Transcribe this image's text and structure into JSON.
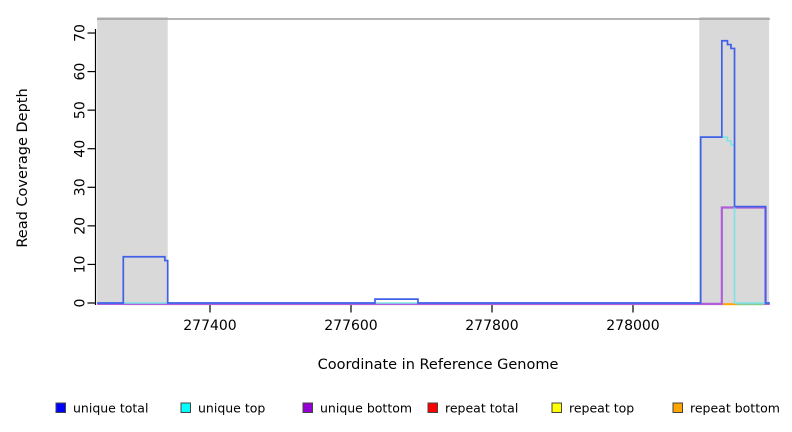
{
  "chart_data": {
    "type": "line",
    "subtype": "step-coverage",
    "title": "",
    "xlabel": "Coordinate in Reference Genome",
    "ylabel": "Read Coverage Depth",
    "x_ticks": [
      277400,
      277600,
      277800,
      278000
    ],
    "y_ticks": [
      0,
      10,
      20,
      30,
      40,
      50,
      60,
      70
    ],
    "xlim": [
      277240,
      278194
    ],
    "ylim": [
      0,
      73
    ],
    "grid": false,
    "legend_position": "bottom",
    "shaded_regions": [
      {
        "from": 277240,
        "to": 277340,
        "color": "#D9D9D9"
      },
      {
        "from": 278094,
        "to": 278193,
        "color": "#D9D9D9"
      }
    ],
    "series": [
      {
        "name": "repeat total",
        "line_color": "#F0808E",
        "segments": [
          [
            277277,
            277386,
            0
          ],
          [
            277634,
            277695,
            0
          ],
          [
            278096,
            278126,
            0
          ]
        ]
      },
      {
        "name": "repeat top",
        "line_color": "#8CC98F",
        "segments": [
          [
            278147,
            278188,
            0
          ]
        ]
      },
      {
        "name": "repeat bottom",
        "line_color": "#FFA500",
        "segments": [
          [
            278126,
            278147,
            0
          ]
        ]
      },
      {
        "name": "unique bottom",
        "line_color": "#AE5FD9",
        "segments": [
          [
            277240,
            278126,
            0
          ],
          [
            278126,
            278188,
            25
          ],
          [
            278188,
            278194,
            0
          ]
        ]
      },
      {
        "name": "unique top",
        "line_color": "#7CE3E8",
        "segments": [
          [
            277240,
            278096,
            0
          ],
          [
            278096,
            278134,
            43
          ],
          [
            278134,
            278139,
            42
          ],
          [
            278139,
            278144,
            41
          ],
          [
            278144,
            278194,
            0
          ]
        ]
      },
      {
        "name": "unique total",
        "line_color": "#4060E8",
        "segments": [
          [
            277240,
            277277,
            0
          ],
          [
            277277,
            277336,
            12
          ],
          [
            277336,
            277340,
            11
          ],
          [
            277340,
            277634,
            0
          ],
          [
            277634,
            277695,
            1
          ],
          [
            277695,
            278096,
            0
          ],
          [
            278096,
            278126,
            43
          ],
          [
            278126,
            278134,
            68
          ],
          [
            278134,
            278139,
            67
          ],
          [
            278139,
            278144,
            66
          ],
          [
            278144,
            278188,
            25
          ],
          [
            278188,
            278194,
            0
          ]
        ]
      }
    ],
    "legend": [
      {
        "label": "unique total",
        "color": "#0000FF"
      },
      {
        "label": "unique top",
        "color": "#00FFFF"
      },
      {
        "label": "unique bottom",
        "color": "#9400D3"
      },
      {
        "label": "repeat total",
        "color": "#FF0000"
      },
      {
        "label": "repeat top",
        "color": "#FFFF00"
      },
      {
        "label": "repeat bottom",
        "color": "#FFA500"
      }
    ]
  }
}
